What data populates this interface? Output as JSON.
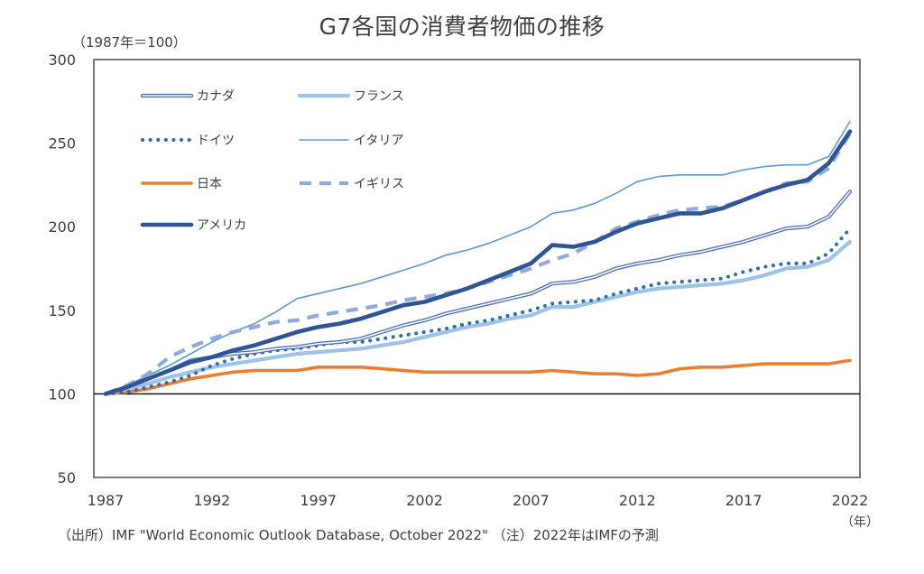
{
  "chart_data": {
    "type": "line",
    "title": "G7各国の消費者物価の推移",
    "subtitle": "（1987年＝100）",
    "xlabel": "（年）",
    "ylabel": "",
    "xlim": [
      1987,
      2022
    ],
    "ylim": [
      50,
      300
    ],
    "yticks": [
      50,
      100,
      150,
      200,
      250,
      300
    ],
    "xticks": [
      1987,
      1992,
      1997,
      2002,
      2007,
      2012,
      2017,
      2022
    ],
    "baseline": 100,
    "grid": false,
    "legend_position": "top-left",
    "note": "（出所）IMF \"World Economic Outlook Database, October 2022\"  （注）2022年はIMFの予測",
    "x": [
      1987,
      1988,
      1989,
      1990,
      1991,
      1992,
      1993,
      1994,
      1995,
      1996,
      1997,
      1998,
      1999,
      2000,
      2001,
      2002,
      2003,
      2004,
      2005,
      2006,
      2007,
      2008,
      2009,
      2010,
      2011,
      2012,
      2013,
      2014,
      2015,
      2016,
      2017,
      2018,
      2019,
      2020,
      2021,
      2022
    ],
    "series": [
      {
        "name": "カナダ",
        "style": "double",
        "color": "#4a6fb5",
        "values": [
          100,
          104,
          109,
          114,
          120,
          122,
          124,
          125,
          127,
          128,
          130,
          131,
          133,
          137,
          141,
          144,
          148,
          151,
          154,
          157,
          160,
          166,
          167,
          170,
          175,
          178,
          180,
          183,
          185,
          188,
          191,
          195,
          199,
          200,
          206,
          221
        ]
      },
      {
        "name": "フランス",
        "style": "thick-light",
        "color": "#9dc3e6",
        "values": [
          100,
          103,
          106,
          110,
          113,
          116,
          118,
          120,
          122,
          124,
          125,
          126,
          127,
          129,
          131,
          134,
          137,
          140,
          142,
          145,
          147,
          152,
          152,
          155,
          158,
          161,
          163,
          164,
          165,
          166,
          168,
          171,
          175,
          176,
          180,
          191
        ]
      },
      {
        "name": "ドイツ",
        "style": "dotted",
        "color": "#2e6db4",
        "values": [
          100,
          101,
          104,
          107,
          111,
          117,
          121,
          124,
          126,
          127,
          129,
          131,
          131,
          133,
          135,
          137,
          139,
          142,
          144,
          147,
          150,
          154,
          155,
          156,
          160,
          163,
          166,
          167,
          168,
          169,
          173,
          176,
          178,
          178,
          184,
          199
        ]
      },
      {
        "name": "イタリア",
        "style": "thin",
        "color": "#5b9bd5",
        "values": [
          100,
          105,
          111,
          117,
          124,
          131,
          137,
          142,
          149,
          157,
          160,
          163,
          166,
          170,
          174,
          178,
          183,
          186,
          190,
          195,
          200,
          208,
          210,
          214,
          220,
          227,
          230,
          231,
          231,
          231,
          234,
          236,
          237,
          237,
          242,
          263
        ]
      },
      {
        "name": "日本",
        "style": "solid",
        "color": "#ed7d31",
        "values": [
          100,
          101,
          103,
          106,
          109,
          111,
          113,
          114,
          114,
          114,
          116,
          116,
          116,
          115,
          114,
          113,
          113,
          113,
          113,
          113,
          113,
          114,
          113,
          112,
          112,
          111,
          112,
          115,
          116,
          116,
          117,
          118,
          118,
          118,
          118,
          120
        ]
      },
      {
        "name": "イギリス",
        "style": "dashed",
        "color": "#8faadc",
        "values": [
          100,
          105,
          112,
          122,
          128,
          133,
          137,
          140,
          143,
          144,
          147,
          149,
          151,
          153,
          156,
          158,
          160,
          163,
          167,
          171,
          175,
          180,
          184,
          191,
          199,
          203,
          207,
          210,
          211,
          212,
          216,
          221,
          226,
          227,
          235,
          256
        ]
      },
      {
        "name": "アメリカ",
        "style": "thick",
        "color": "#2f5597",
        "values": [
          100,
          104,
          109,
          114,
          119,
          122,
          126,
          129,
          133,
          137,
          140,
          142,
          145,
          149,
          153,
          155,
          159,
          163,
          168,
          173,
          178,
          189,
          188,
          191,
          197,
          202,
          205,
          208,
          208,
          211,
          216,
          221,
          225,
          228,
          238,
          257
        ]
      }
    ]
  }
}
